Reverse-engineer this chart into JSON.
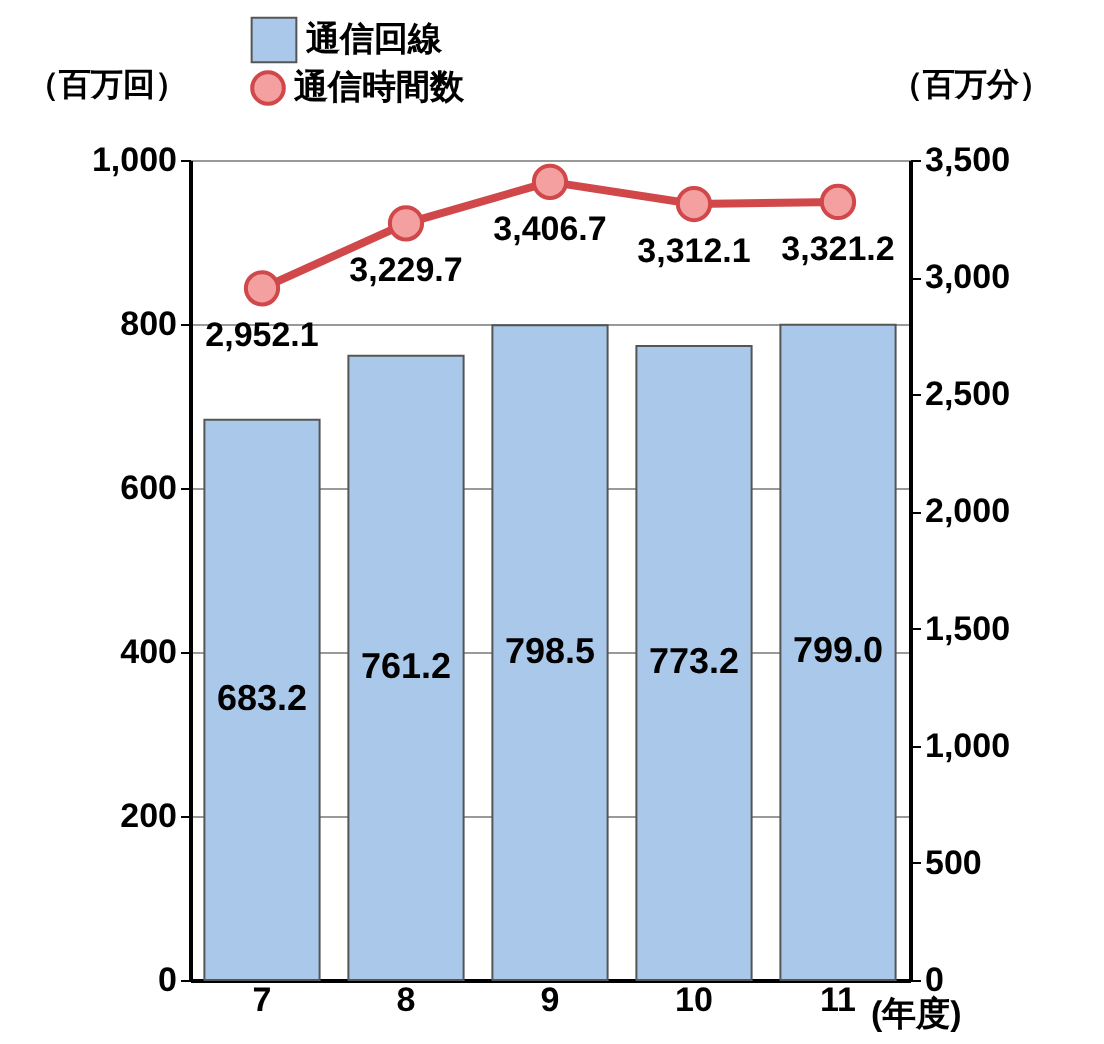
{
  "chart_data": {
    "type": "bar",
    "xlabel": "(年度)",
    "ylabel": "（百万回）",
    "y2label": "（百万分）",
    "categories": [
      "7",
      "8",
      "9",
      "10",
      "11"
    ],
    "series": [
      {
        "name": "通信回線",
        "color": "#a9c8ea",
        "values": [
          683.2,
          761.2,
          798.5,
          773.2,
          799.0
        ],
        "value_labels": [
          "683.2",
          "761.2",
          "798.5",
          "773.2",
          "799.0"
        ]
      },
      {
        "name": "通信時間数",
        "type": "line",
        "axis": "y2",
        "color": "#d0484a",
        "values": [
          2952.1,
          3229.7,
          3406.7,
          3312.1,
          3321.2
        ],
        "value_labels": [
          "2,952.1",
          "3,229.7",
          "3,406.7",
          "3,312.1",
          "3,321.2"
        ]
      }
    ],
    "ylim": [
      0,
      1000
    ],
    "yticks": [
      0,
      200,
      400,
      600,
      800,
      {
        "value": 1000,
        "label": "1,000"
      }
    ],
    "y2lim": [
      0,
      3500
    ],
    "y2ticks": [
      0,
      500,
      {
        "value": 1000,
        "label": "1,000"
      },
      {
        "value": 1500,
        "label": "1,500"
      },
      {
        "value": 2000,
        "label": "2,000"
      },
      {
        "value": 2500,
        "label": "2,500"
      },
      {
        "value": 3000,
        "label": "3,000"
      },
      {
        "value": 3500,
        "label": "3,500"
      }
    ],
    "grid": "y",
    "legend": "top",
    "marker": "circle",
    "line_style": "solid"
  }
}
